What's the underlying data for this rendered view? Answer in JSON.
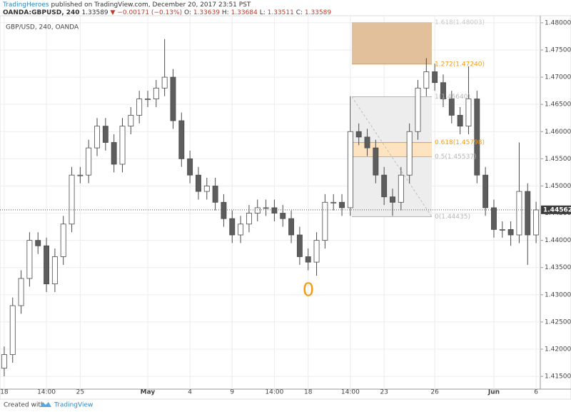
{
  "header": {
    "publisher": "TradingHeroes",
    "published": "published on TradingView.com, December 20, 2017 23:51 PST",
    "symbol": "OANDA:GBPUSD, 240",
    "price": "1.33589",
    "change": "▼ −0.00171 (−0.13%)",
    "ohlc": [
      {
        "label": "O:",
        "value": "1.33639"
      },
      {
        "label": "H:",
        "value": "1.33684"
      },
      {
        "label": "L:",
        "value": "1.33511"
      },
      {
        "label": "C:",
        "value": "1.33589"
      }
    ]
  },
  "footer": {
    "created": "Created with",
    "brand": "TradingView"
  },
  "chart_data": {
    "type": "candlestick",
    "title": "GBP/USD, 240, OANDA",
    "categories": [
      "18",
      null,
      null,
      null,
      null,
      "14:00",
      null,
      null,
      null,
      "25",
      null,
      null,
      null,
      null,
      null,
      null,
      null,
      "May",
      null,
      null,
      null,
      null,
      "4",
      null,
      null,
      null,
      null,
      "9",
      null,
      null,
      null,
      null,
      "14:00",
      null,
      null,
      null,
      "18",
      null,
      null,
      null,
      null,
      "14:00",
      null,
      null,
      null,
      "23",
      null,
      null,
      null,
      null,
      null,
      "26",
      null,
      null,
      null,
      null,
      null,
      null,
      "Jun",
      null,
      null,
      null,
      null,
      "6"
    ],
    "open": [
      1.4165,
      1.419,
      1.428,
      1.433,
      1.44,
      1.439,
      1.432,
      1.437,
      1.443,
      1.452,
      1.452,
      1.457,
      1.461,
      1.458,
      1.454,
      1.461,
      1.463,
      1.466,
      1.466,
      1.468,
      1.47,
      1.462,
      1.455,
      1.452,
      1.449,
      1.45,
      1.447,
      1.444,
      1.441,
      1.443,
      1.445,
      1.446,
      1.446,
      1.445,
      1.444,
      1.441,
      1.437,
      1.436,
      1.44,
      1.447,
      1.447,
      1.446,
      1.46,
      1.459,
      1.457,
      1.452,
      1.448,
      1.447,
      1.452,
      1.46,
      1.468,
      1.471,
      1.469,
      1.466,
      1.463,
      1.461,
      1.466,
      1.452,
      1.446,
      1.442,
      1.442,
      1.441,
      1.449,
      1.441
    ],
    "high": [
      1.4205,
      1.4295,
      1.4345,
      1.4415,
      1.4415,
      1.4405,
      1.4385,
      1.4445,
      1.4535,
      1.4535,
      1.4585,
      1.4625,
      1.4625,
      1.4595,
      1.4625,
      1.4645,
      1.4675,
      1.4675,
      1.4695,
      1.477,
      1.4715,
      1.4635,
      1.4565,
      1.4535,
      1.4515,
      1.4515,
      1.4485,
      1.4455,
      1.4445,
      1.4465,
      1.4475,
      1.4475,
      1.4475,
      1.4465,
      1.4455,
      1.4425,
      1.4385,
      1.4415,
      1.4485,
      1.4485,
      1.4485,
      1.4665,
      1.4615,
      1.4605,
      1.4585,
      1.4535,
      1.4495,
      1.4535,
      1.4615,
      1.4695,
      1.4735,
      1.4725,
      1.4705,
      1.4675,
      1.4645,
      1.472,
      1.4675,
      1.4535,
      1.4475,
      1.4435,
      1.4435,
      1.458,
      1.4505,
      1.4471
    ],
    "low": [
      1.415,
      1.4175,
      1.4265,
      1.4315,
      1.4375,
      1.4305,
      1.4305,
      1.4355,
      1.4415,
      1.4505,
      1.4505,
      1.4555,
      1.4565,
      1.4525,
      1.4525,
      1.4595,
      1.4615,
      1.4645,
      1.4645,
      1.4665,
      1.4605,
      1.4535,
      1.4505,
      1.4475,
      1.4475,
      1.4455,
      1.4425,
      1.4395,
      1.4395,
      1.4415,
      1.4435,
      1.4445,
      1.4435,
      1.4425,
      1.4395,
      1.4355,
      1.4345,
      1.4335,
      1.4385,
      1.4455,
      1.4445,
      1.4445,
      1.4575,
      1.4555,
      1.4505,
      1.4465,
      1.4445,
      1.4455,
      1.4505,
      1.4585,
      1.4665,
      1.4675,
      1.4645,
      1.4615,
      1.4595,
      1.4595,
      1.4505,
      1.4445,
      1.4405,
      1.4405,
      1.439,
      1.4395,
      1.4355,
      1.4395
    ],
    "close": [
      1.419,
      1.428,
      1.433,
      1.44,
      1.439,
      1.432,
      1.437,
      1.443,
      1.452,
      1.452,
      1.457,
      1.461,
      1.458,
      1.454,
      1.461,
      1.463,
      1.466,
      1.466,
      1.468,
      1.47,
      1.462,
      1.455,
      1.452,
      1.449,
      1.45,
      1.447,
      1.444,
      1.441,
      1.443,
      1.445,
      1.446,
      1.446,
      1.445,
      1.444,
      1.441,
      1.437,
      1.436,
      1.44,
      1.447,
      1.447,
      1.446,
      1.46,
      1.459,
      1.457,
      1.452,
      1.448,
      1.447,
      1.452,
      1.46,
      1.468,
      1.471,
      1.469,
      1.466,
      1.463,
      1.461,
      1.466,
      1.452,
      1.446,
      1.442,
      1.442,
      1.441,
      1.449,
      1.441,
      1.4456
    ],
    "up_color": "#ffffff",
    "down_color": "#5d5d5d",
    "wick_color": "#4a4a4a",
    "ylim": [
      1.41265,
      1.4813
    ],
    "yticks": [
      {
        "value": 1.415,
        "label": "1.41500"
      },
      {
        "value": 1.42,
        "label": "1.42000"
      },
      {
        "value": 1.425,
        "label": "1.42500"
      },
      {
        "value": 1.43,
        "label": "1.43000"
      },
      {
        "value": 1.435,
        "label": "1.43500"
      },
      {
        "value": 1.44,
        "label": "1.44000"
      },
      {
        "value": 1.445,
        "label": "1.44500"
      },
      {
        "value": 1.45,
        "label": "1.45000"
      },
      {
        "value": 1.455,
        "label": "1.45500"
      },
      {
        "value": 1.46,
        "label": "1.46000"
      },
      {
        "value": 1.465,
        "label": "1.46500"
      },
      {
        "value": 1.47,
        "label": "1.47000"
      },
      {
        "value": 1.475,
        "label": "1.47500"
      },
      {
        "value": 1.48,
        "label": "1.48000"
      }
    ],
    "grid": true,
    "last_price": 1.44562,
    "annotation": "0",
    "fib_levels": [
      {
        "price": 1.44435,
        "label": "0(1.44435)",
        "color": "#b5b5b5"
      },
      {
        "price": 1.45537,
        "label": "0.5(1.45537)",
        "color": "#b5b5b5"
      },
      {
        "price": 1.45798,
        "label": "0.618(1.45798)",
        "color": "#f39c12"
      },
      {
        "price": 1.4664,
        "label": "1(1.46640)",
        "color": "#b5b5b5"
      },
      {
        "price": 1.4724,
        "label": "1.272(1.47240)",
        "color": "#f39c12"
      },
      {
        "price": 1.48003,
        "label": "1.618(1.48003)",
        "color": "#c8c8c8"
      }
    ]
  }
}
